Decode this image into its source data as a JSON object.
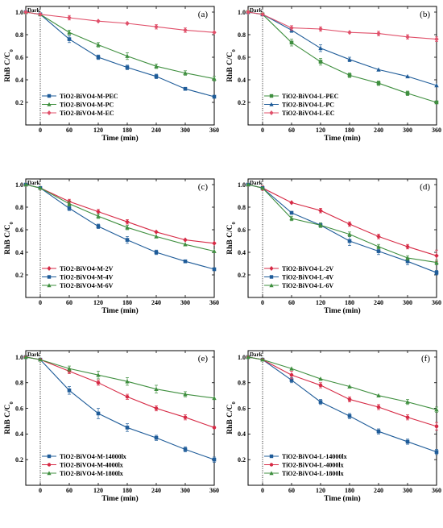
{
  "figure": {
    "x_label": "Time (min)",
    "y_label": "RhB C/C",
    "y_label_sub": "0",
    "dark_label": "Dark"
  },
  "colors": {
    "blue": "#1f5c99",
    "green": "#3f8f3f",
    "pink": "#e0506a",
    "red": "#d62a45",
    "axis": "#000000"
  },
  "chart_data": [
    {
      "panel": "(a)",
      "type": "line",
      "x": [
        -30,
        0,
        60,
        120,
        180,
        240,
        300,
        360
      ],
      "xlim": [
        -30,
        360
      ],
      "ylim": [
        0.0,
        1.05
      ],
      "xticks": [
        0,
        60,
        120,
        180,
        240,
        300,
        360
      ],
      "yticks": [
        0.2,
        0.4,
        0.6,
        0.8,
        1.0
      ],
      "legend_position": "bottom-left",
      "series": [
        {
          "name": "TiO2-BiVO4-M-PEC",
          "color": "#1f5c99",
          "marker": "square",
          "values": [
            1.0,
            0.98,
            0.76,
            0.6,
            0.51,
            0.43,
            0.32,
            0.25
          ],
          "errors": [
            0.01,
            0.01,
            0.03,
            0.02,
            0.02,
            0.02,
            0.01,
            0.01
          ]
        },
        {
          "name": "TiO2-BiVO4-M-PC",
          "color": "#3f8f3f",
          "marker": "triangle",
          "values": [
            1.0,
            0.98,
            0.82,
            0.71,
            0.61,
            0.52,
            0.46,
            0.41
          ],
          "errors": [
            0.01,
            0.01,
            0.02,
            0.02,
            0.03,
            0.02,
            0.02,
            0.02
          ]
        },
        {
          "name": "TiO2-BiVO4-M-EC",
          "color": "#e0506a",
          "marker": "diamond",
          "values": [
            1.0,
            0.98,
            0.95,
            0.92,
            0.9,
            0.87,
            0.84,
            0.82
          ],
          "errors": [
            0.01,
            0.01,
            0.02,
            0.01,
            0.01,
            0.02,
            0.02,
            0.01
          ]
        }
      ]
    },
    {
      "panel": "(b)",
      "type": "line",
      "x": [
        -30,
        0,
        60,
        120,
        180,
        240,
        300,
        360
      ],
      "xlim": [
        -30,
        360
      ],
      "ylim": [
        0.0,
        1.05
      ],
      "xticks": [
        0,
        60,
        120,
        180,
        240,
        300,
        360
      ],
      "yticks": [
        0.2,
        0.4,
        0.6,
        0.8,
        1.0
      ],
      "legend_position": "bottom-left",
      "series": [
        {
          "name": "TiO2-BiVO4-L-PEC",
          "color": "#3f8f3f",
          "marker": "square",
          "values": [
            1.0,
            0.98,
            0.73,
            0.56,
            0.44,
            0.37,
            0.28,
            0.2
          ],
          "errors": [
            0.01,
            0.01,
            0.03,
            0.03,
            0.02,
            0.02,
            0.02,
            0.01
          ]
        },
        {
          "name": "TiO2-BiVO4-L-PC",
          "color": "#1f5c99",
          "marker": "triangle",
          "values": [
            1.0,
            0.98,
            0.84,
            0.68,
            0.58,
            0.49,
            0.43,
            0.35
          ],
          "errors": [
            0.01,
            0.01,
            0.02,
            0.03,
            0.02,
            0.01,
            0.01,
            0.01
          ]
        },
        {
          "name": "TiO2-BiVO4-L-EC",
          "color": "#e0506a",
          "marker": "diamond",
          "values": [
            1.0,
            0.98,
            0.86,
            0.85,
            0.82,
            0.81,
            0.78,
            0.76
          ],
          "errors": [
            0.01,
            0.01,
            0.02,
            0.02,
            0.01,
            0.02,
            0.02,
            0.02
          ]
        }
      ]
    },
    {
      "panel": "(c)",
      "type": "line",
      "x": [
        -30,
        0,
        60,
        120,
        180,
        240,
        300,
        360
      ],
      "xlim": [
        -30,
        360
      ],
      "ylim": [
        0.0,
        1.05
      ],
      "xticks": [
        0,
        60,
        120,
        180,
        240,
        300,
        360
      ],
      "yticks": [
        0.2,
        0.4,
        0.6,
        0.8,
        1.0
      ],
      "legend_position": "bottom-left",
      "series": [
        {
          "name": "TiO2-BiVO4-M-2V",
          "color": "#d62a45",
          "marker": "diamond",
          "values": [
            1.0,
            0.97,
            0.85,
            0.76,
            0.67,
            0.58,
            0.51,
            0.48
          ],
          "errors": [
            0.01,
            0.01,
            0.02,
            0.02,
            0.02,
            0.01,
            0.01,
            0.01
          ]
        },
        {
          "name": "TiO2-BiVO4-M-4V",
          "color": "#1f5c99",
          "marker": "square",
          "values": [
            1.0,
            0.97,
            0.79,
            0.63,
            0.51,
            0.4,
            0.32,
            0.25
          ],
          "errors": [
            0.01,
            0.01,
            0.02,
            0.02,
            0.03,
            0.02,
            0.01,
            0.01
          ]
        },
        {
          "name": "TiO2-BiVO4-M-6V",
          "color": "#3f8f3f",
          "marker": "triangle",
          "values": [
            1.0,
            0.97,
            0.83,
            0.72,
            0.62,
            0.54,
            0.47,
            0.41
          ],
          "errors": [
            0.01,
            0.01,
            0.02,
            0.02,
            0.02,
            0.01,
            0.01,
            0.01
          ]
        }
      ]
    },
    {
      "panel": "(d)",
      "type": "line",
      "x": [
        -30,
        0,
        60,
        120,
        180,
        240,
        300,
        360
      ],
      "xlim": [
        -30,
        360
      ],
      "ylim": [
        0.0,
        1.05
      ],
      "xticks": [
        0,
        60,
        120,
        180,
        240,
        300,
        360
      ],
      "yticks": [
        0.2,
        0.4,
        0.6,
        0.8,
        1.0
      ],
      "legend_position": "bottom-left",
      "series": [
        {
          "name": "TiO2-BiVO4-L-2V",
          "color": "#d62a45",
          "marker": "diamond",
          "values": [
            1.0,
            0.97,
            0.84,
            0.77,
            0.65,
            0.54,
            0.45,
            0.37
          ],
          "errors": [
            0.01,
            0.02,
            0.01,
            0.02,
            0.02,
            0.02,
            0.02,
            0.05
          ]
        },
        {
          "name": "TiO2-BiVO4-L-4V",
          "color": "#1f5c99",
          "marker": "square",
          "values": [
            1.0,
            0.97,
            0.75,
            0.64,
            0.5,
            0.41,
            0.32,
            0.22
          ],
          "errors": [
            0.01,
            0.01,
            0.01,
            0.02,
            0.04,
            0.03,
            0.03,
            0.02
          ]
        },
        {
          "name": "TiO2-BiVO4-L-6V",
          "color": "#3f8f3f",
          "marker": "triangle",
          "values": [
            1.0,
            0.97,
            0.7,
            0.64,
            0.56,
            0.45,
            0.35,
            0.31
          ],
          "errors": [
            0.01,
            0.01,
            0.02,
            0.02,
            0.02,
            0.02,
            0.02,
            0.02
          ]
        }
      ]
    },
    {
      "panel": "(e)",
      "type": "line",
      "x": [
        -30,
        0,
        60,
        120,
        180,
        240,
        300,
        360
      ],
      "xlim": [
        -30,
        360
      ],
      "ylim": [
        0.0,
        1.05
      ],
      "xticks": [
        0,
        60,
        120,
        180,
        240,
        300,
        360
      ],
      "yticks": [
        0.2,
        0.4,
        0.6,
        0.8,
        1.0
      ],
      "legend_position": "bottom-left",
      "series": [
        {
          "name": "TiO2-BiVO4-M-14000lx",
          "color": "#1f5c99",
          "marker": "square",
          "values": [
            1.0,
            0.98,
            0.74,
            0.56,
            0.45,
            0.37,
            0.28,
            0.2
          ],
          "errors": [
            0.01,
            0.01,
            0.03,
            0.04,
            0.03,
            0.02,
            0.02,
            0.02
          ]
        },
        {
          "name": "TiO2-BiVO4-M-4000lx",
          "color": "#d62a45",
          "marker": "circle",
          "values": [
            1.0,
            0.98,
            0.89,
            0.8,
            0.69,
            0.6,
            0.53,
            0.45
          ],
          "errors": [
            0.01,
            0.01,
            0.02,
            0.02,
            0.02,
            0.02,
            0.02,
            0.01
          ]
        },
        {
          "name": "TiO2-BiVO4-M-1800lx",
          "color": "#3f8f3f",
          "marker": "triangle",
          "values": [
            1.0,
            0.98,
            0.91,
            0.86,
            0.81,
            0.75,
            0.71,
            0.68
          ],
          "errors": [
            0.01,
            0.01,
            0.02,
            0.03,
            0.03,
            0.03,
            0.02,
            0.01
          ]
        }
      ]
    },
    {
      "panel": "(f)",
      "type": "line",
      "x": [
        -30,
        0,
        60,
        120,
        180,
        240,
        300,
        360
      ],
      "xlim": [
        -30,
        360
      ],
      "ylim": [
        0.0,
        1.05
      ],
      "xticks": [
        0,
        60,
        120,
        180,
        240,
        300,
        360
      ],
      "yticks": [
        0.2,
        0.4,
        0.6,
        0.8,
        1.0
      ],
      "legend_position": "bottom-left",
      "series": [
        {
          "name": "TiO2-BiVO4-L-14000lx",
          "color": "#1f5c99",
          "marker": "square",
          "values": [
            1.0,
            0.98,
            0.82,
            0.65,
            0.54,
            0.42,
            0.34,
            0.26
          ],
          "errors": [
            0.01,
            0.01,
            0.02,
            0.02,
            0.02,
            0.02,
            0.02,
            0.02
          ]
        },
        {
          "name": "TiO2-BiVO4-L-4000lx",
          "color": "#d62a45",
          "marker": "circle",
          "values": [
            1.0,
            0.98,
            0.86,
            0.78,
            0.67,
            0.61,
            0.53,
            0.46
          ],
          "errors": [
            0.01,
            0.01,
            0.03,
            0.02,
            0.02,
            0.02,
            0.02,
            0.03
          ]
        },
        {
          "name": "TiO2-BiVO4-L-1800lx",
          "color": "#3f8f3f",
          "marker": "triangle",
          "values": [
            1.0,
            0.98,
            0.91,
            0.83,
            0.77,
            0.7,
            0.65,
            0.59
          ],
          "errors": [
            0.01,
            0.01,
            0.01,
            0.01,
            0.01,
            0.01,
            0.02,
            0.02
          ]
        }
      ]
    }
  ]
}
